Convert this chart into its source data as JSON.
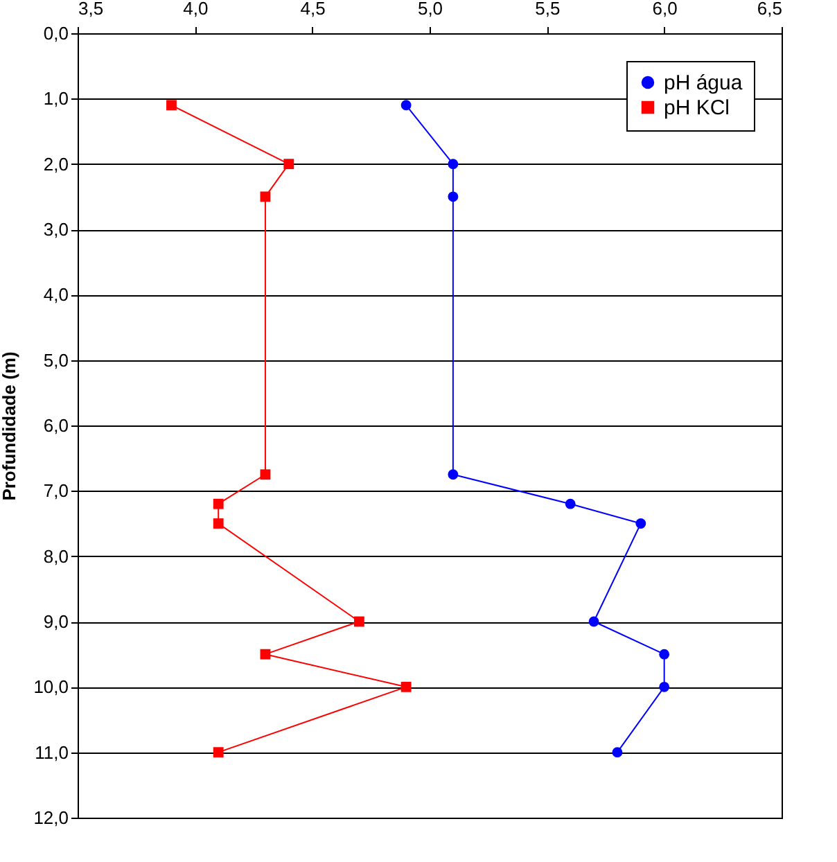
{
  "chart_data": {
    "type": "line",
    "ylabel": "Profundidade (m)",
    "legend": "top right",
    "grid": "y",
    "xlim": [
      3.5,
      6.5
    ],
    "xticks": [
      {
        "value": 3.5,
        "label": "3,5"
      },
      {
        "value": 4,
        "label": "4,0"
      },
      {
        "value": 4.5,
        "label": "4,5"
      },
      {
        "value": 5,
        "label": "5,0"
      },
      {
        "value": 5.5,
        "label": "5,5"
      },
      {
        "value": 6,
        "label": "6,0"
      },
      {
        "value": 6.5,
        "label": "6,5"
      }
    ],
    "ylim": [
      12,
      0
    ],
    "yticks": [
      {
        "value": 0,
        "label": "0,0"
      },
      {
        "value": 1,
        "label": "1,0"
      },
      {
        "value": 2,
        "label": "2,0"
      },
      {
        "value": 3,
        "label": "3,0"
      },
      {
        "value": 4,
        "label": "4,0"
      },
      {
        "value": 5,
        "label": "5,0"
      },
      {
        "value": 6,
        "label": "6,0"
      },
      {
        "value": 7,
        "label": "7,0"
      },
      {
        "value": 8,
        "label": "8,0"
      },
      {
        "value": 9,
        "label": "9,0"
      },
      {
        "value": 10,
        "label": "10,0"
      },
      {
        "value": 11,
        "label": "11,0"
      },
      {
        "value": 12,
        "label": "12,0"
      }
    ],
    "series": [
      {
        "name": "pH água",
        "color": "#0000ff",
        "marker": "circle",
        "x": [
          4.9,
          5.1,
          5.1,
          5.1,
          5.6,
          5.9,
          5.7,
          6.0,
          6.0,
          5.8
        ],
        "values": [
          1.1,
          2.0,
          2.5,
          6.75,
          7.2,
          7.5,
          9.0,
          9.5,
          10.0,
          11.0
        ]
      },
      {
        "name": "pH KCl",
        "color": "#ff0000",
        "marker": "square",
        "x": [
          3.9,
          4.4,
          4.3,
          4.3,
          4.1,
          4.1,
          4.7,
          4.3,
          4.9,
          4.1
        ],
        "values": [
          1.1,
          2.0,
          2.5,
          6.75,
          7.2,
          7.5,
          9.0,
          9.5,
          10.0,
          11.0
        ]
      }
    ]
  }
}
